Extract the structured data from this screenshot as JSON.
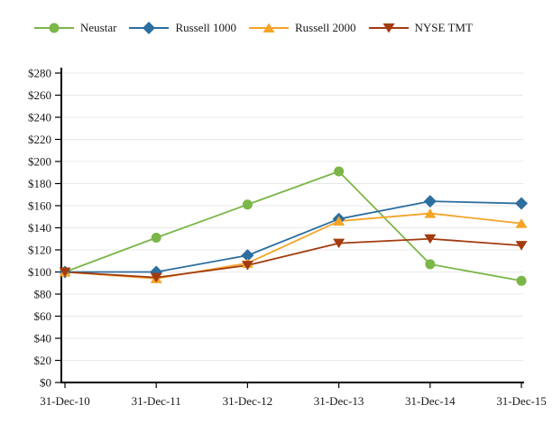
{
  "page": {
    "background": "#FFFFFF",
    "text_color": "#1A1A1A"
  },
  "chart_data": {
    "type": "line",
    "title": "",
    "x": [
      "31-Dec-10",
      "31-Dec-11",
      "31-Dec-12",
      "31-Dec-13",
      "31-Dec-14",
      "31-Dec-15"
    ],
    "series": [
      {
        "name": "Neustar",
        "marker": "circle",
        "color": "#7AB648",
        "values": [
          100,
          131,
          161,
          191,
          107,
          92
        ]
      },
      {
        "name": "Russell 1000",
        "marker": "diamond",
        "color": "#2C6E9E",
        "values": [
          100,
          100,
          115,
          148,
          164,
          162
        ]
      },
      {
        "name": "Russell 2000",
        "marker": "triangle-up",
        "color": "#F5A428",
        "values": [
          100,
          94,
          108,
          146,
          153,
          144
        ]
      },
      {
        "name": "NYSE TMT",
        "marker": "triangle-down",
        "color": "#A33B0F",
        "values": [
          100,
          95,
          106,
          126,
          130,
          124
        ]
      }
    ],
    "ylim": [
      0,
      280
    ],
    "ytick_step": 20,
    "ytick_labels": [
      "$0",
      "$20",
      "$40",
      "$60",
      "$80",
      "$100",
      "$120",
      "$140",
      "$160",
      "$180",
      "$200",
      "$220",
      "$240",
      "$260",
      "$280"
    ],
    "xlabel": "",
    "ylabel": "",
    "grid": "horizontal",
    "legend_position": "top",
    "colors": {
      "grid": "#E8E8E8",
      "axis": "#000000"
    }
  }
}
